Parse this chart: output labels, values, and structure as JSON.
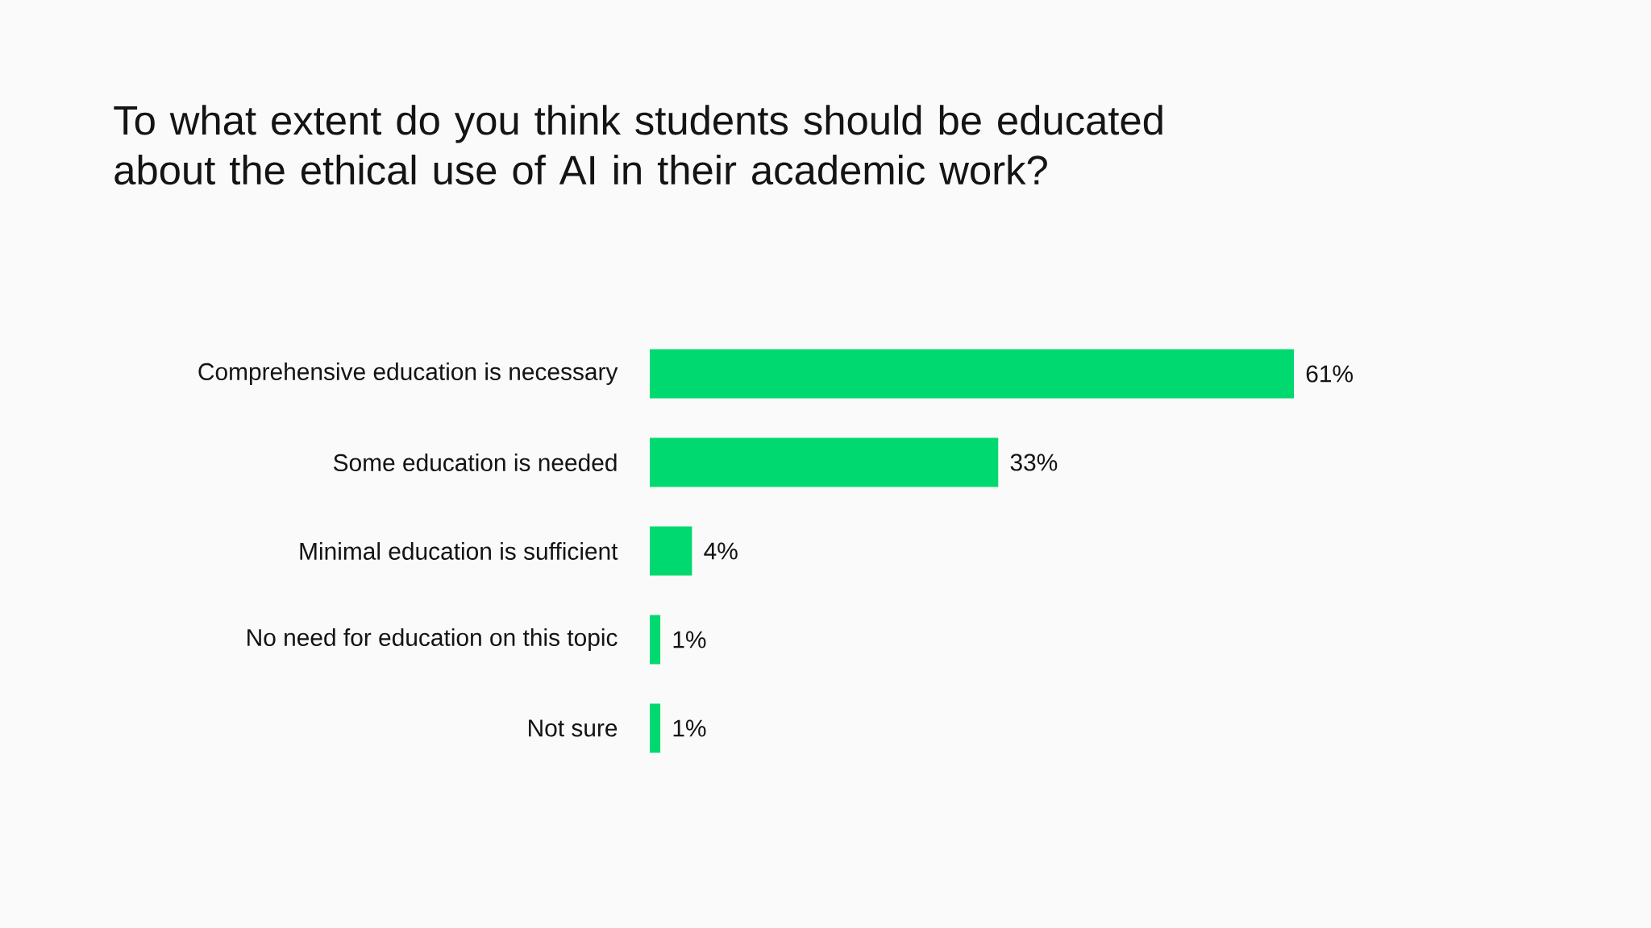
{
  "chart_data": {
    "type": "bar",
    "orientation": "horizontal",
    "title": "To what extent do you think students should be educated about the ethical use of AI in their academic work?",
    "categories": [
      "Comprehensive education is necessary",
      "Some education is needed",
      "Minimal education is sufficient",
      "No need for education on this topic",
      "Not sure"
    ],
    "values": [
      61,
      33,
      4,
      1,
      1
    ],
    "color": "#00d96f",
    "value_labels": [
      "61%",
      "33%",
      "4%",
      "1%",
      "1%"
    ]
  }
}
